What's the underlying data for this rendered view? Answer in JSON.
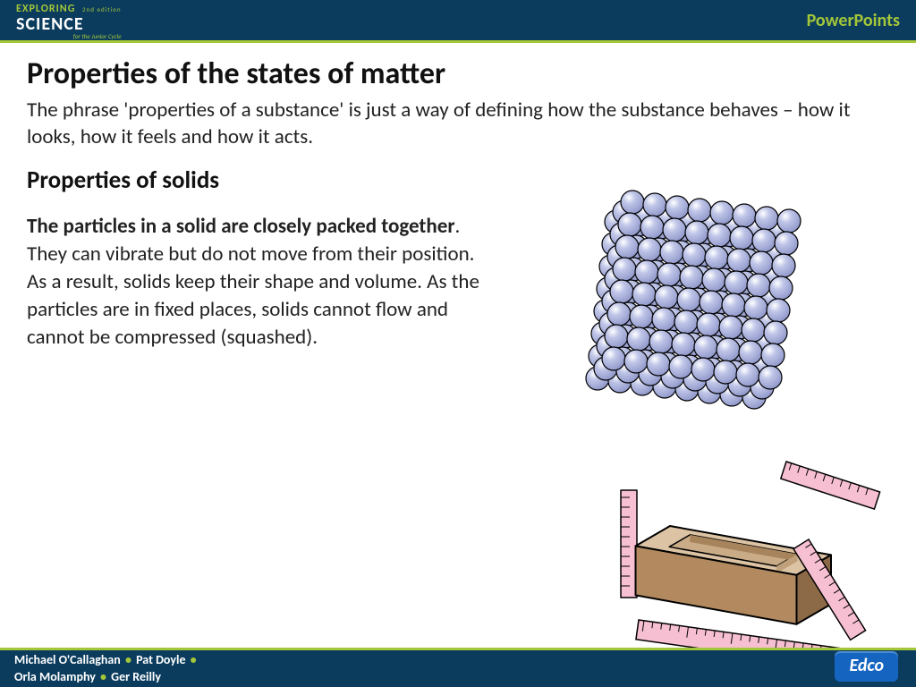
{
  "header": {
    "logo_top": "EXPLORING",
    "logo_edition": "2nd edition",
    "logo_main": "SCIENCE",
    "logo_sub": "for the Junior Cycle",
    "right_label": "PowerPoints",
    "bg_color": "#0b3c5d",
    "accent_color": "#a4c639"
  },
  "title": "Properties of the states of matter",
  "intro": "The phrase 'properties of a substance' is just a way of defining how the substance behaves – how it looks, how it feels and how it acts.",
  "subheading": "Properties of solids",
  "body_bold": "The particles in a solid are closely packed together",
  "body_rest": ". They can vibrate but do not move from their position. As a result, solids keep their shape and volume. As the particles are in fixed places, solids cannot flow and cannot be compressed (squashed).",
  "particle_diagram": {
    "type": "isometric-sphere-grid",
    "rows": 8,
    "cols": 8,
    "layers": 3,
    "sphere_radius": 13,
    "sphere_fill": "#c0c6e8",
    "sphere_highlight": "#ffffff",
    "sphere_stroke": "#000000",
    "dx_col": 25,
    "dy_col": 3,
    "dx_row": -3,
    "dy_row": 25,
    "dx_layer": 9,
    "dy_layer": -11
  },
  "brick_diagram": {
    "type": "isometric-box-with-rulers",
    "box_fill_top": "#dcc3a4",
    "box_fill_front": "#b38a5f",
    "box_fill_side": "#8d6a47",
    "box_stroke": "#000000",
    "ruler_fill": "#f7bfd2",
    "ruler_stroke": "#000000",
    "ruler_tick_color": "#000000"
  },
  "footer": {
    "authors": [
      "Michael O'Callaghan",
      "Pat Doyle",
      "Orla Molamphy",
      "Ger Reilly"
    ],
    "publisher": "Edco",
    "publisher_bg": "#1565c0"
  }
}
